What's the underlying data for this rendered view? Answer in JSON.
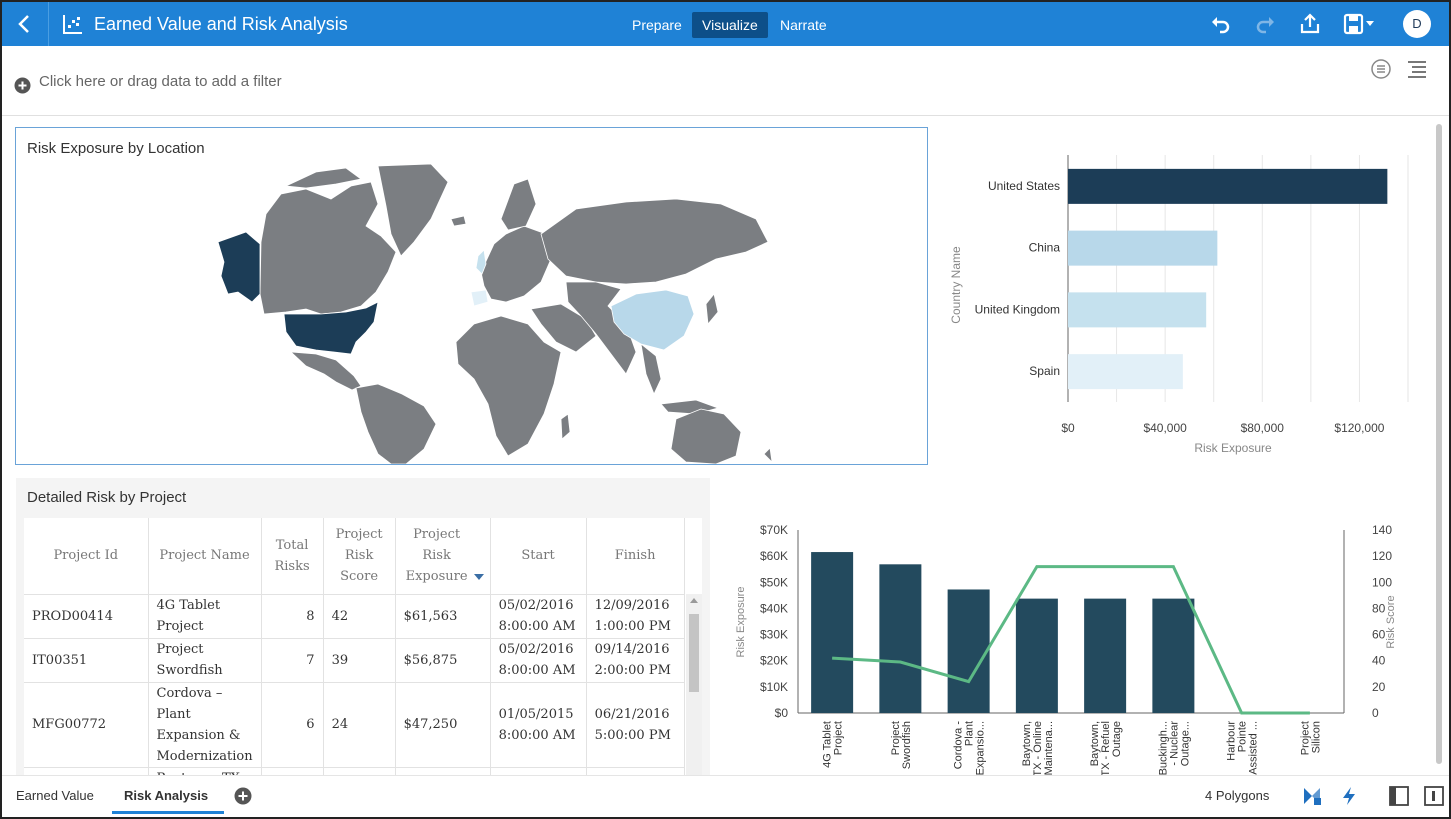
{
  "header": {
    "title": "Earned Value and Risk Analysis",
    "modes": [
      "Prepare",
      "Visualize",
      "Narrate"
    ],
    "active_mode": "Visualize",
    "avatar_letter": "D",
    "bg_color": "#1f82d6"
  },
  "filter": {
    "placeholder": "Click here or drag data to add a filter"
  },
  "map": {
    "title": "Risk Exposure by Location",
    "highlighted": [
      "United States",
      "China",
      "United Kingdom",
      "Spain"
    ]
  },
  "bar_chart": {
    "ylabel": "Country Name",
    "xlabel": "Risk Exposure",
    "ticks": [
      "$0",
      "$40,000",
      "$80,000",
      "$120,000"
    ]
  },
  "table": {
    "title": "Detailed Risk by Project",
    "headers": [
      "Project Id",
      "Project Name",
      "Total Risks",
      "Project Risk Score",
      "Project Risk Exposure",
      "Start",
      "Finish"
    ],
    "rows": [
      {
        "id": "PROD00414",
        "name": "4G Tablet Project",
        "risks": "8",
        "score": "42",
        "exposure": "$61,563",
        "start": "05/02/2016 8:00:00 AM",
        "finish": "12/09/2016 1:00:00 PM"
      },
      {
        "id": "IT00351",
        "name": "Project Swordfish",
        "risks": "7",
        "score": "39",
        "exposure": "$56,875",
        "start": "05/02/2016 8:00:00 AM",
        "finish": "09/14/2016 2:00:00 PM"
      },
      {
        "id": "MFG00772",
        "name": "Cordova – Plant Expansion & Modernization",
        "risks": "6",
        "score": "24",
        "exposure": "$47,250",
        "start": "01/05/2015 8:00:00 AM",
        "finish": "06/21/2016 5:00:00 PM"
      },
      {
        "id": "",
        "name": "Baytown, TX",
        "risks": "",
        "score": "",
        "exposure": "",
        "start": "",
        "finish": ""
      }
    ]
  },
  "combo_chart": {
    "left_label": "Risk Exposure",
    "right_label": "Risk Score",
    "left_ticks": [
      "$0",
      "$10K",
      "$20K",
      "$30K",
      "$40K",
      "$50K",
      "$60K",
      "$70K"
    ],
    "right_ticks": [
      "0",
      "20",
      "40",
      "60",
      "80",
      "100",
      "120",
      "140"
    ],
    "categories": [
      "4G Tablet Project",
      "Project Swordfish",
      "Cordova - Plant Expansio...",
      "Baytown, TX - Online Maintena...",
      "Baytown, TX - Refuel Outage",
      "Buckingh... - Nuclear Outage...",
      "Harbour Pointe Assisted ...",
      "Project Silicon"
    ],
    "category_lines": [
      [
        "4G Tablet",
        "Project"
      ],
      [
        "Project",
        "Swordfish"
      ],
      [
        "Cordova -",
        "Plant",
        "Expansio..."
      ],
      [
        "Baytown,",
        "TX - Online",
        "Maintena..."
      ],
      [
        "Baytown,",
        "TX - Refuel",
        "Outage"
      ],
      [
        "Buckingh...",
        "- Nuclear",
        "Outage..."
      ],
      [
        "Harbour",
        "Pointe",
        "Assisted ..."
      ],
      [
        "Project",
        "Silicon"
      ]
    ]
  },
  "chart_data": [
    {
      "type": "bar",
      "orientation": "horizontal",
      "categories": [
        "United States",
        "China",
        "United Kingdom",
        "Spain"
      ],
      "values": [
        131500,
        61500,
        56900,
        47300
      ],
      "xlabel": "Risk Exposure",
      "ylabel": "Country Name",
      "xlim": [
        0,
        140000
      ],
      "colors": [
        "#1c3d57",
        "#b8d8ea",
        "#c5e1ee",
        "#e2f0f8"
      ]
    },
    {
      "type": "bar+line",
      "categories": [
        "4G Tablet Project",
        "Project Swordfish",
        "Cordova - Plant Expansio...",
        "Baytown, TX - Online Maintena...",
        "Baytown, TX - Refuel Outage",
        "Buckingh... - Nuclear Outage...",
        "Harbour Pointe Assisted ...",
        "Project Silicon"
      ],
      "series": [
        {
          "name": "Risk Exposure",
          "type": "bar",
          "axis": "left",
          "values": [
            61563,
            56875,
            47250,
            43750,
            43750,
            43750,
            0,
            0
          ],
          "color": "#234a5e"
        },
        {
          "name": "Risk Score",
          "type": "line",
          "axis": "right",
          "values": [
            42,
            39,
            24,
            112,
            112,
            112,
            0,
            0
          ],
          "color": "#5cb985"
        }
      ],
      "ylabel": "Risk Exposure",
      "y2label": "Risk Score",
      "ylim": [
        0,
        70000
      ],
      "y2lim": [
        0,
        140
      ]
    }
  ],
  "tabs": [
    "Earned Value",
    "Risk Analysis"
  ],
  "active_tab": "Risk Analysis",
  "status": {
    "polygons": "4 Polygons"
  }
}
